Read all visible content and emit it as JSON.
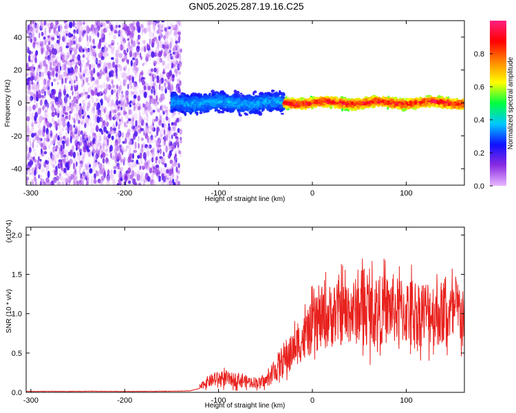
{
  "figure": {
    "title": "GN05.2025.287.19.16.C25"
  },
  "chart_data": [
    {
      "type": "heatmap",
      "xlabel": "Height of straight line (km)",
      "ylabel": "Frequency (Hz)",
      "xlim": [
        -305,
        162
      ],
      "ylim": [
        -50,
        50
      ],
      "x_ticks": [
        -300,
        -200,
        -100,
        0,
        100
      ],
      "x_tick_labels": [
        "-300",
        "-200",
        "-100",
        "0",
        "100"
      ],
      "y_ticks": [
        -40,
        -20,
        0,
        20,
        40
      ],
      "y_tick_labels": [
        "-40",
        "-20",
        "0",
        "20",
        "40"
      ],
      "grid": false,
      "colorbar": {
        "label": "Normalized spectral amplitude",
        "range": [
          0,
          1
        ],
        "ticks": [
          0.0,
          0.2,
          0.4,
          0.6,
          0.8
        ],
        "tick_labels": [
          "0.0",
          "0.2",
          "0.4",
          "0.6",
          "0.8"
        ],
        "colors": [
          "#e8b8ff",
          "#8a2be2",
          "#1010ff",
          "#00c8ff",
          "#00ff40",
          "#ffff00",
          "#ff8800",
          "#ff0000",
          "#ff2080"
        ]
      },
      "regions": [
        {
          "x_range": [
            -305,
            -140
          ],
          "freq_range": [
            -50,
            50
          ],
          "amplitude": [
            0.0,
            0.2
          ],
          "description": "noise"
        },
        {
          "x_range": [
            -150,
            -30
          ],
          "freq_center": 0,
          "freq_halfwidth": 8,
          "amplitude": [
            0.2,
            0.4
          ]
        },
        {
          "x_range": [
            -30,
            162
          ],
          "freq_center": 0,
          "freq_halfwidth": 4,
          "amplitude": [
            0.5,
            1.0
          ]
        }
      ]
    },
    {
      "type": "line",
      "xlabel": "Height of straight line (km)",
      "ylabel": "SNR (10 * v/v)",
      "y_multiplier": "(x10^4)",
      "xlim": [
        -305,
        162
      ],
      "ylim": [
        0,
        2.1
      ],
      "x_ticks": [
        -300,
        -200,
        -100,
        0,
        100
      ],
      "x_tick_labels": [
        "-300",
        "-200",
        "-100",
        "0",
        "100"
      ],
      "y_ticks": [
        0.0,
        0.5,
        1.0,
        1.5,
        2.0
      ],
      "y_tick_labels": [
        "0.0",
        "0.5",
        "1.0",
        "1.5",
        "2.0"
      ],
      "grid": false,
      "line_color": "#e8221e",
      "series": [
        {
          "x": [
            -305,
            -280,
            -260,
            -240,
            -220,
            -200,
            -180,
            -160,
            -140,
            -130,
            -120,
            -115,
            -110,
            -105,
            -100,
            -95,
            -90,
            -85,
            -80,
            -75,
            -70,
            -65,
            -60,
            -55,
            -50,
            -45,
            -40,
            -35,
            -30,
            -25,
            -20,
            -15,
            -10,
            -5,
            0,
            5,
            10,
            15,
            20,
            25,
            30,
            35,
            40,
            45,
            50,
            55,
            60,
            65,
            70,
            75,
            80,
            85,
            90,
            95,
            100,
            105,
            110,
            115,
            120,
            125,
            130,
            135,
            140,
            145,
            150,
            155,
            160
          ],
          "y": [
            0.012,
            0.013,
            0.012,
            0.014,
            0.013,
            0.012,
            0.013,
            0.014,
            0.015,
            0.02,
            0.05,
            0.12,
            0.14,
            0.16,
            0.17,
            0.18,
            0.17,
            0.16,
            0.17,
            0.15,
            0.14,
            0.13,
            0.13,
            0.12,
            0.14,
            0.2,
            0.28,
            0.35,
            0.42,
            0.48,
            0.55,
            0.62,
            0.68,
            0.75,
            0.82,
            0.88,
            0.92,
            0.95,
            0.98,
            1.0,
            1.02,
            1.0,
            1.05,
            1.02,
            1.06,
            1.04,
            1.05,
            1.03,
            1.06,
            1.04,
            1.05,
            1.08,
            1.03,
            1.05,
            1.02,
            1.04,
            1.03,
            1.0,
            1.02,
            1.03,
            1.0,
            1.01,
            1.0,
            0.98,
            1.0,
            1.02,
            1.0
          ]
        }
      ]
    }
  ]
}
